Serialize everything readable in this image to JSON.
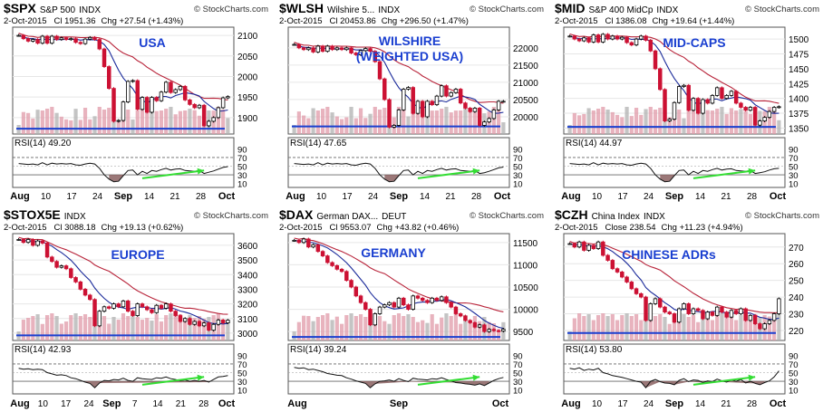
{
  "source": "© StockCharts.com",
  "rsi_guides": [
    "90",
    "70",
    "50",
    "30",
    "10"
  ],
  "colors": {
    "up": "#ffffff",
    "down": "#cc1133",
    "upline": "#000000",
    "ma_short": "#1a2a9a",
    "ma_long": "#b8243a",
    "support": "#1a3fd0",
    "volume": "#e09aa8",
    "volume_gray": "#b0b0b0",
    "rsi_fill": "#8a6060",
    "arrow": "#33dd33",
    "label_blue": "#1a3fd0"
  },
  "charts": [
    {
      "symbol": "$SPX",
      "name": "S&P 500",
      "exch": "INDX",
      "date": "2-Oct-2015",
      "quote": "Cl 1951.36",
      "chg": "Chg +27.54 (+1.43%)",
      "label": "USA",
      "rsi_label": "RSI(14) 49.20",
      "x_labels": [
        "Aug",
        "10",
        "17",
        "24",
        "Sep",
        "14",
        "21",
        "28",
        "Oct"
      ],
      "chart_data": {
        "type": "candlestick",
        "ylim": [
          1860,
          2120
        ],
        "y_ticks": [
          "2100",
          "2050",
          "2000",
          "1950",
          "1900"
        ],
        "support": 1873,
        "closes": [
          2100,
          2092,
          2086,
          2090,
          2081,
          2098,
          2081,
          2098,
          2090,
          2094,
          2090,
          2092,
          2083,
          2080,
          2091,
          2095,
          2090,
          2067,
          2024,
          1971,
          1891,
          1893,
          1938,
          1988,
          1990,
          1920,
          1949,
          1913,
          1949,
          1941,
          1962,
          1986,
          1961,
          1968,
          1976,
          1943,
          1932,
          1924,
          1930,
          1880,
          1891,
          1900,
          1924,
          1948,
          1951
        ],
        "rsi": [
          56,
          55,
          54,
          55,
          53,
          58,
          53,
          57,
          55,
          56,
          55,
          56,
          53,
          52,
          55,
          57,
          55,
          45,
          30,
          20,
          14,
          15,
          28,
          40,
          41,
          30,
          38,
          33,
          40,
          38,
          42,
          45,
          41,
          43,
          44,
          40,
          39,
          38,
          40,
          33,
          36,
          39,
          43,
          47,
          49
        ]
      }
    },
    {
      "symbol": "$WLSH",
      "name": "Wilshire 5...",
      "exch": "INDX",
      "date": "2-Oct-2015",
      "quote": "Cl 20453.86",
      "chg": "Chg +296.50 (+1.47%)",
      "label": "WILSHIRE (WEIGHTED USA)",
      "rsi_label": "RSI(14) 47.65",
      "x_labels": [
        "Aug",
        "10",
        "17",
        "24",
        "Sep",
        "14",
        "21",
        "28",
        "Oct"
      ],
      "chart_data": {
        "type": "candlestick",
        "ylim": [
          19500,
          22600
        ],
        "y_ticks": [
          "22000",
          "21500",
          "21000",
          "20500",
          "20000"
        ],
        "support": 19720,
        "closes": [
          22100,
          22000,
          21950,
          22000,
          21880,
          22050,
          21900,
          22050,
          21950,
          22000,
          21950,
          22000,
          21850,
          21800,
          21920,
          21980,
          21900,
          21600,
          21100,
          20500,
          19700,
          19750,
          20200,
          20800,
          20850,
          20100,
          20450,
          20000,
          20450,
          20350,
          20600,
          20900,
          20600,
          20700,
          20800,
          20400,
          20250,
          20150,
          20250,
          19750,
          19850,
          19950,
          20200,
          20450,
          20450
        ],
        "rsi": [
          56,
          55,
          54,
          55,
          53,
          58,
          53,
          57,
          55,
          56,
          55,
          56,
          53,
          52,
          55,
          57,
          55,
          45,
          30,
          20,
          14,
          15,
          28,
          40,
          41,
          30,
          38,
          33,
          40,
          38,
          42,
          45,
          41,
          43,
          44,
          40,
          39,
          38,
          40,
          33,
          35,
          38,
          42,
          46,
          48
        ]
      }
    },
    {
      "symbol": "$MID",
      "name": "S&P 400 MidCp",
      "exch": "INDX",
      "date": "2-Oct-2015",
      "quote": "Cl 1386.08",
      "chg": "Chg +19.64 (+1.44%)",
      "label": "MID-CAPS",
      "rsi_label": "RSI(14) 44.97",
      "x_labels": [
        "Aug",
        "10",
        "17",
        "24",
        "Sep",
        "14",
        "21",
        "28",
        "Oct"
      ],
      "chart_data": {
        "type": "candlestick",
        "ylim": [
          1340,
          1520
        ],
        "y_ticks": [
          "1500",
          "1475",
          "1450",
          "1425",
          "1400",
          "1375",
          "1350"
        ],
        "support": 1352,
        "closes": [
          1505,
          1500,
          1497,
          1502,
          1495,
          1507,
          1495,
          1508,
          1500,
          1505,
          1500,
          1503,
          1494,
          1490,
          1500,
          1505,
          1498,
          1480,
          1450,
          1415,
          1362,
          1365,
          1393,
          1420,
          1422,
          1380,
          1400,
          1375,
          1398,
          1392,
          1405,
          1418,
          1400,
          1405,
          1412,
          1392,
          1385,
          1380,
          1385,
          1355,
          1362,
          1368,
          1378,
          1385,
          1386
        ],
        "rsi": [
          56,
          55,
          54,
          55,
          53,
          58,
          53,
          57,
          55,
          56,
          55,
          56,
          53,
          52,
          55,
          57,
          55,
          45,
          30,
          20,
          14,
          15,
          28,
          40,
          41,
          30,
          38,
          33,
          40,
          38,
          42,
          45,
          41,
          43,
          44,
          40,
          39,
          38,
          40,
          33,
          35,
          37,
          41,
          44,
          45
        ]
      }
    },
    {
      "symbol": "$STOX5E",
      "name": "",
      "exch": "INDX",
      "date": "2-Oct-2015",
      "quote": "Cl 3088.18",
      "chg": "Chg +19.13 (+0.62%)",
      "label": "EUROPE",
      "rsi_label": "RSI(14) 42.93",
      "x_labels": [
        "Aug",
        "10",
        "17",
        "24",
        "Sep",
        "7",
        "14",
        "21",
        "28",
        "Oct"
      ],
      "chart_data": {
        "type": "candlestick",
        "ylim": [
          2950,
          3680
        ],
        "y_ticks": [
          "3600",
          "3500",
          "3400",
          "3300",
          "3200",
          "3100",
          "3000"
        ],
        "support": 2985,
        "closes": [
          3640,
          3620,
          3640,
          3600,
          3630,
          3615,
          3520,
          3490,
          3450,
          3460,
          3440,
          3380,
          3350,
          3300,
          3260,
          3230,
          3050,
          3150,
          3180,
          3170,
          3200,
          3180,
          3220,
          3150,
          3120,
          3200,
          3180,
          3160,
          3140,
          3190,
          3170,
          3200,
          3150,
          3120,
          3080,
          3100,
          3060,
          3080,
          3050,
          3070,
          3020,
          3060,
          3090,
          3070,
          3088
        ],
        "rsi": [
          60,
          58,
          59,
          57,
          58,
          57,
          50,
          47,
          44,
          45,
          43,
          38,
          36,
          32,
          28,
          25,
          15,
          26,
          32,
          31,
          34,
          33,
          37,
          32,
          30,
          38,
          36,
          35,
          34,
          38,
          37,
          40,
          36,
          34,
          31,
          33,
          30,
          32,
          30,
          32,
          28,
          34,
          40,
          41,
          43
        ]
      }
    },
    {
      "symbol": "$DAX",
      "name": "German DAX...",
      "exch": "DEUT",
      "date": "2-Oct-2015",
      "quote": "Cl 9553.07",
      "chg": "Chg +43.82 (+0.46%)",
      "label": "GERMANY",
      "rsi_label": "RSI(14) 39.24",
      "x_labels": [
        "Aug",
        "Sep",
        "Oct"
      ],
      "chart_data": {
        "type": "candlestick",
        "ylim": [
          9300,
          11700
        ],
        "y_ticks": [
          "11500",
          "11000",
          "10500",
          "10000",
          "9500"
        ],
        "support": 9380,
        "closes": [
          11550,
          11500,
          11580,
          11400,
          11450,
          11300,
          11200,
          11050,
          10980,
          10900,
          10850,
          10650,
          10500,
          10300,
          10150,
          10000,
          9650,
          9900,
          10050,
          10100,
          10150,
          10050,
          10250,
          10100,
          10000,
          10300,
          10250,
          10200,
          10150,
          10250,
          10200,
          10280,
          10150,
          10050,
          9900,
          9850,
          9750,
          9700,
          9600,
          9650,
          9500,
          9550,
          9520,
          9510,
          9553
        ],
        "rsi": [
          62,
          60,
          61,
          57,
          58,
          55,
          52,
          48,
          46,
          44,
          43,
          38,
          35,
          31,
          28,
          25,
          15,
          24,
          30,
          31,
          33,
          30,
          36,
          32,
          29,
          37,
          35,
          34,
          33,
          36,
          35,
          38,
          34,
          31,
          27,
          26,
          24,
          23,
          21,
          24,
          20,
          26,
          32,
          36,
          39
        ]
      }
    },
    {
      "symbol": "$CZH",
      "name": "China Index",
      "exch": "INDX",
      "date": "2-Oct-2015",
      "quote": "Close 238.54",
      "chg": "Chg +11.23 (+4.94%)",
      "label": "CHINESE ADRs",
      "rsi_label": "RSI(14) 53.80",
      "x_labels": [
        "Aug",
        "10",
        "17",
        "24",
        "Sep",
        "14",
        "21",
        "28",
        "Oct"
      ],
      "chart_data": {
        "type": "candlestick",
        "ylim": [
          214,
          278
        ],
        "y_ticks": [
          "270",
          "260",
          "250",
          "240",
          "230",
          "220"
        ],
        "support": 218.5,
        "closes": [
          272,
          270,
          273,
          268,
          271,
          269,
          273,
          265,
          262,
          257,
          255,
          252,
          249,
          245,
          242,
          240,
          226,
          236,
          239,
          234,
          231,
          230,
          225,
          233,
          236,
          230,
          233,
          232,
          227,
          231,
          229,
          234,
          231,
          228,
          232,
          230,
          233,
          226,
          229,
          224,
          221,
          224,
          226,
          230,
          239
        ],
        "rsi": [
          60,
          58,
          61,
          55,
          58,
          56,
          60,
          50,
          47,
          43,
          41,
          39,
          36,
          33,
          30,
          28,
          15,
          30,
          34,
          29,
          26,
          25,
          22,
          32,
          36,
          29,
          33,
          32,
          27,
          31,
          29,
          35,
          31,
          28,
          33,
          30,
          34,
          26,
          30,
          25,
          22,
          27,
          31,
          40,
          54
        ]
      }
    }
  ]
}
